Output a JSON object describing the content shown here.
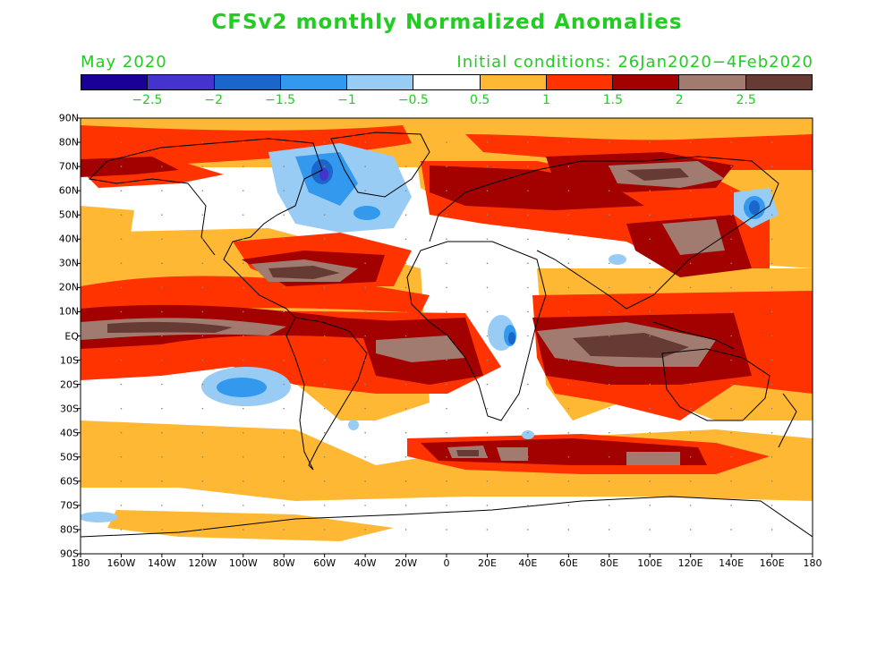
{
  "title": "CFSv2 monthly Normalized Anomalies",
  "valid_month": "May 2020",
  "initial_conditions": "Initial conditions: 26Jan2020−4Feb2020",
  "colorbar": {
    "colors": [
      "#1a0099",
      "#4433cc",
      "#1a66cc",
      "#3399ee",
      "#99ccf5",
      "#ffffff",
      "#ffb833",
      "#ff3300",
      "#a30000",
      "#a17a70",
      "#663b33"
    ],
    "labels": [
      "−2.5",
      "−2",
      "−1.5",
      "−1",
      "−0.5",
      "0.5",
      "1",
      "1.5",
      "2",
      "2.5"
    ]
  },
  "axes": {
    "lat_labels": [
      "90N",
      "80N",
      "70N",
      "60N",
      "50N",
      "40N",
      "30N",
      "20N",
      "10N",
      "EQ",
      "10S",
      "20S",
      "30S",
      "40S",
      "50S",
      "60S",
      "70S",
      "80S",
      "90S"
    ],
    "lon_labels": [
      "180",
      "160W",
      "140W",
      "120W",
      "100W",
      "80W",
      "60W",
      "40W",
      "20W",
      "0",
      "20E",
      "40E",
      "60E",
      "80E",
      "100E",
      "120E",
      "140E",
      "160E",
      "180"
    ]
  }
}
